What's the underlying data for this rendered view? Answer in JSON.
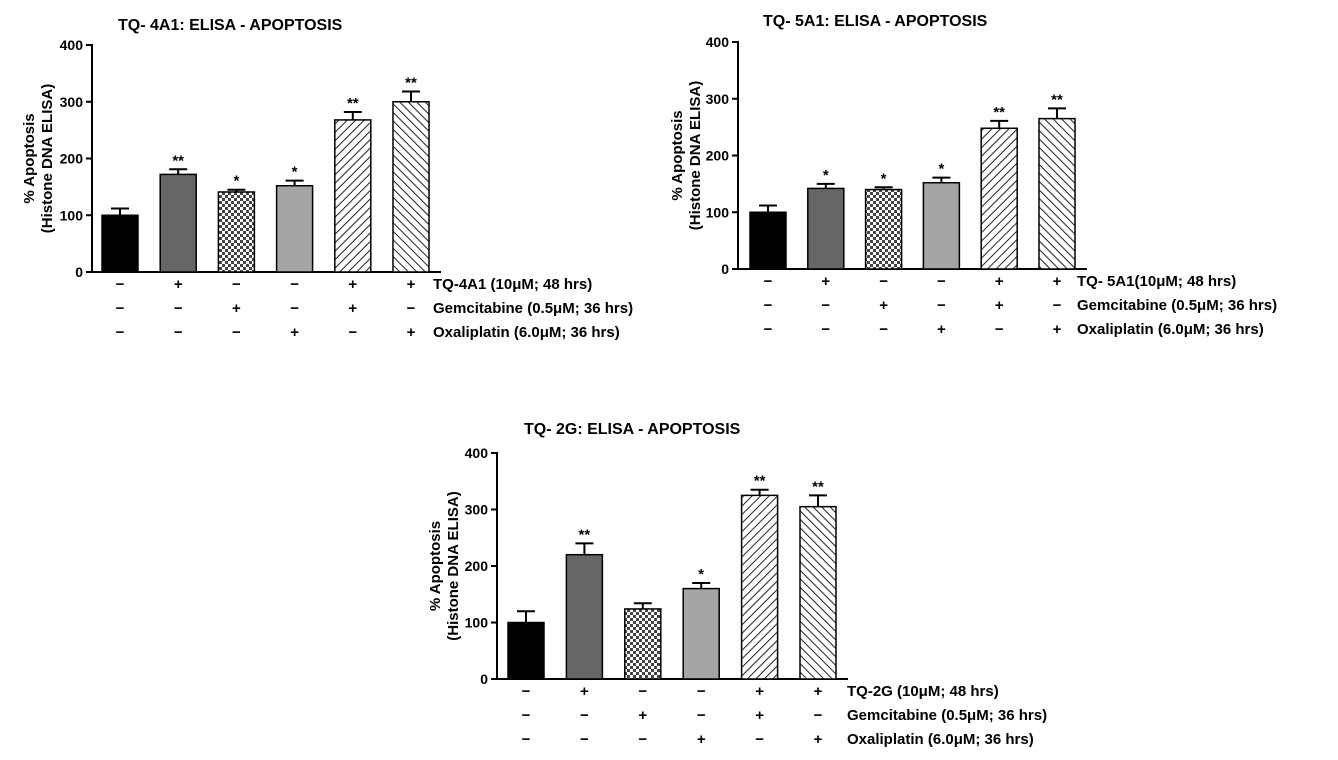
{
  "chart_data": [
    {
      "type": "bar",
      "title": "TQ- 4A1: ELISA - APOPTOSIS",
      "ylabel_lines": [
        "% Apoptosis",
        "(Histone DNA ELISA)"
      ],
      "ylim": [
        0,
        400
      ],
      "yticks": [
        "0",
        "100",
        "200",
        "300",
        "400"
      ],
      "values": [
        100,
        172,
        141,
        152,
        268,
        300
      ],
      "errors": [
        12,
        9,
        4,
        9,
        14,
        18
      ],
      "significance": [
        "",
        "**",
        "*",
        "*",
        "**",
        "**"
      ],
      "fills": [
        "black",
        "darkgray",
        "check",
        "lightgray",
        "hatch-right",
        "hatch-left"
      ],
      "conditions": [
        {
          "label": "TQ-4A1 (10μM; 48 hrs)",
          "marks": [
            "−",
            "+",
            "−",
            "−",
            "+",
            "+"
          ]
        },
        {
          "label": "Gemcitabine (0.5μM; 36 hrs)",
          "marks": [
            "−",
            "−",
            "+",
            "−",
            "+",
            "−"
          ]
        },
        {
          "label": "Oxaliplatin (6.0μM; 36 hrs)",
          "marks": [
            "−",
            "−",
            "−",
            "+",
            "−",
            "+"
          ]
        }
      ]
    },
    {
      "type": "bar",
      "title": "TQ- 5A1: ELISA - APOPTOSIS",
      "ylabel_lines": [
        "% Apoptosis",
        "(Histone DNA ELISA)"
      ],
      "ylim": [
        0,
        400
      ],
      "yticks": [
        "0",
        "100",
        "200",
        "300",
        "400"
      ],
      "values": [
        100,
        142,
        140,
        152,
        248,
        265
      ],
      "errors": [
        12,
        8,
        4,
        9,
        13,
        18
      ],
      "significance": [
        "",
        "*",
        "*",
        "*",
        "**",
        "**"
      ],
      "fills": [
        "black",
        "darkgray",
        "check",
        "lightgray",
        "hatch-right",
        "hatch-left"
      ],
      "conditions": [
        {
          "label": "TQ- 5A1(10μM; 48 hrs)",
          "marks": [
            "−",
            "+",
            "−",
            "−",
            "+",
            "+"
          ]
        },
        {
          "label": "Gemcitabine (0.5μM; 36 hrs)",
          "marks": [
            "−",
            "−",
            "+",
            "−",
            "+",
            "−"
          ]
        },
        {
          "label": "Oxaliplatin (6.0μM; 36 hrs)",
          "marks": [
            "−",
            "−",
            "−",
            "+",
            "−",
            "+"
          ]
        }
      ]
    },
    {
      "type": "bar",
      "title": "TQ- 2G: ELISA - APOPTOSIS",
      "ylabel_lines": [
        "% Apoptosis",
        "(Histone DNA ELISA)"
      ],
      "ylim": [
        0,
        400
      ],
      "yticks": [
        "0",
        "100",
        "200",
        "300",
        "400"
      ],
      "values": [
        100,
        220,
        124,
        160,
        325,
        305
      ],
      "errors": [
        20,
        20,
        10,
        10,
        10,
        20
      ],
      "significance": [
        "",
        "**",
        "",
        "*",
        "**",
        "**"
      ],
      "fills": [
        "black",
        "darkgray",
        "check",
        "lightgray",
        "hatch-right",
        "hatch-left"
      ],
      "conditions": [
        {
          "label": "TQ-2G (10μM; 48 hrs)",
          "marks": [
            "−",
            "+",
            "−",
            "−",
            "+",
            "+"
          ]
        },
        {
          "label": "Gemcitabine (0.5μM; 36 hrs)",
          "marks": [
            "−",
            "−",
            "+",
            "−",
            "+",
            "−"
          ]
        },
        {
          "label": "Oxaliplatin (6.0μM; 36 hrs)",
          "marks": [
            "−",
            "−",
            "−",
            "+",
            "−",
            "+"
          ]
        }
      ]
    }
  ]
}
